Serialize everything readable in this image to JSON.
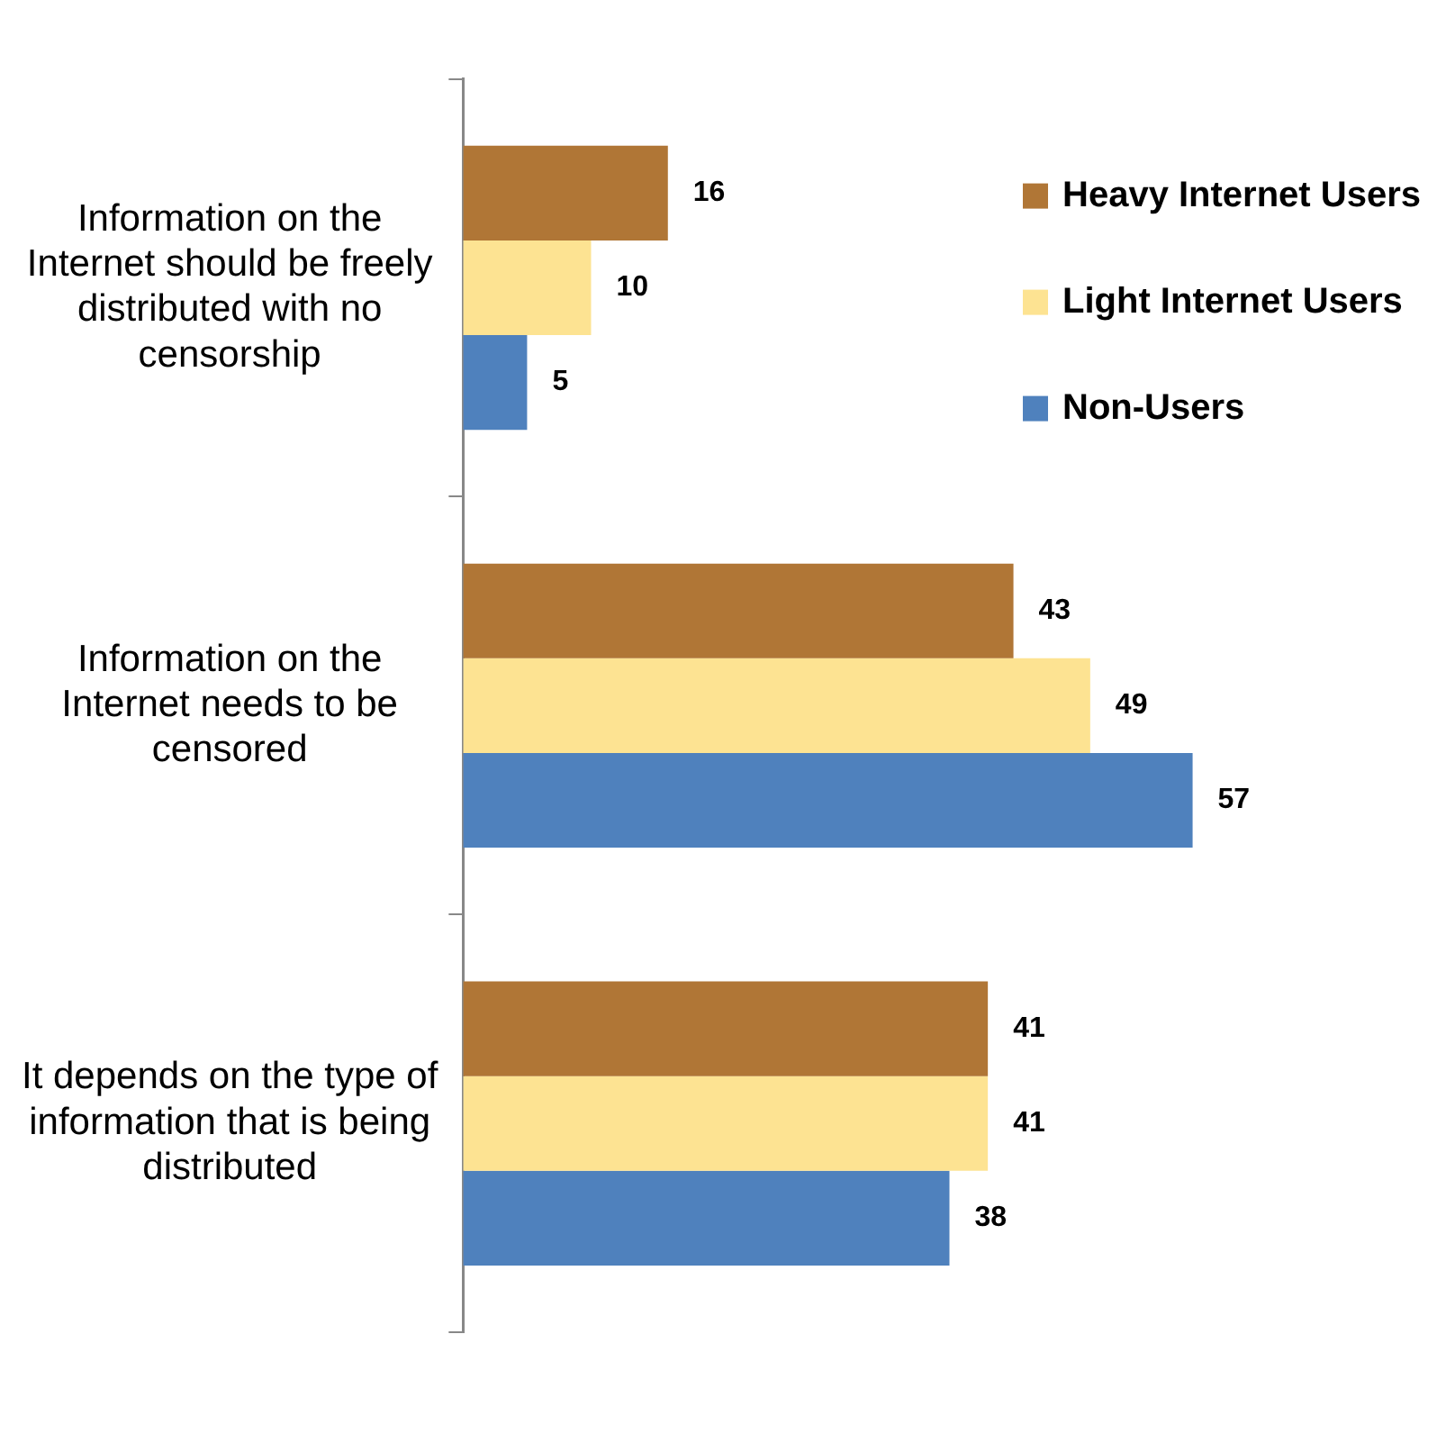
{
  "chart_data": {
    "type": "bar",
    "orientation": "horizontal",
    "categories": [
      "Information on the Internet should be freely distributed with no censorship",
      "Information on the Internet needs to be censored",
      "It depends on the type of information that is being distributed"
    ],
    "series": [
      {
        "name": "Heavy Internet Users",
        "color": "#b07636",
        "values": [
          16,
          43,
          41
        ]
      },
      {
        "name": "Light Internet Users",
        "color": "#fde392",
        "values": [
          10,
          49,
          41
        ]
      },
      {
        "name": "Non-Users",
        "color": "#4f81bd",
        "values": [
          5,
          57,
          38
        ]
      }
    ],
    "data_labels": true,
    "legend": "top right",
    "grid": false
  }
}
